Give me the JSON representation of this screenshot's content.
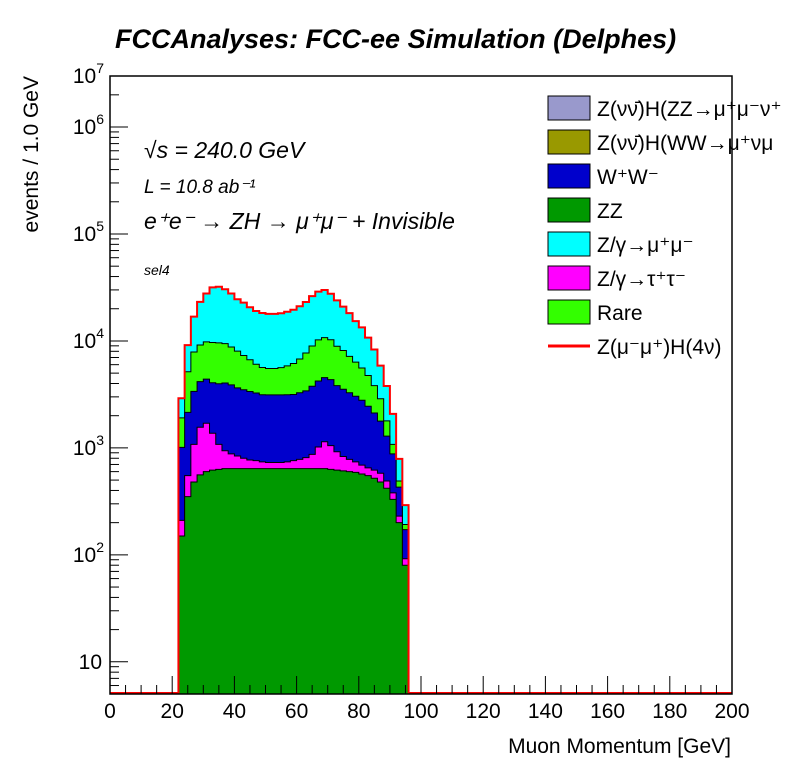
{
  "chart_data": {
    "type": "area",
    "title": "FCCAnalyses: FCC-ee Simulation (Delphes)",
    "xlabel": "Muon Momentum [GeV]",
    "ylabel": "events / 1.0 GeV",
    "xlim": [
      0,
      200
    ],
    "ylim": [
      5,
      3000000
    ],
    "log_y": true,
    "legend_position": "top-right",
    "x_ticks": [
      "0",
      "20",
      "40",
      "60",
      "80",
      "100",
      "120",
      "140",
      "160",
      "180",
      "200"
    ],
    "x_tick_values": [
      0,
      20,
      40,
      60,
      80,
      100,
      120,
      140,
      160,
      180,
      200
    ],
    "y_ticks": [
      {
        "value": 10,
        "base": "10",
        "exp": ""
      },
      {
        "value": 100,
        "base": "10",
        "exp": "2"
      },
      {
        "value": 1000,
        "base": "10",
        "exp": "3"
      },
      {
        "value": 10000,
        "base": "10",
        "exp": "4"
      },
      {
        "value": 100000,
        "base": "10",
        "exp": "5"
      },
      {
        "value": 1000000,
        "base": "10",
        "exp": "6"
      },
      {
        "value": 10000000,
        "base": "10",
        "exp": "7"
      }
    ],
    "annotations": {
      "sqrt_s": "√s = 240.0 GeV",
      "lumi": "L = 10.8 ab⁻¹",
      "process": "e⁺e⁻ → ZH → μ⁺μ⁻ + Invisible",
      "selection": "sel4"
    },
    "x": [
      18,
      20,
      22,
      24,
      26,
      28,
      30,
      32,
      34,
      36,
      38,
      40,
      42,
      44,
      46,
      48,
      50,
      52,
      54,
      56,
      58,
      60,
      62,
      64,
      66,
      68,
      70,
      72,
      74,
      76,
      78,
      80,
      82,
      84,
      86,
      88,
      90,
      92,
      94,
      96
    ],
    "stack_bottom_to_top": [
      {
        "name": "ZZ",
        "color": "#009900",
        "values": [
          0,
          0,
          150,
          350,
          480,
          560,
          600,
          620,
          630,
          640,
          640,
          640,
          640,
          640,
          640,
          640,
          640,
          640,
          640,
          640,
          640,
          640,
          640,
          640,
          640,
          640,
          630,
          620,
          610,
          600,
          590,
          570,
          550,
          520,
          480,
          420,
          330,
          200,
          80,
          0
        ]
      },
      {
        "name": "Z/γ→τ⁺τ⁻",
        "color": "#ff00ff",
        "values": [
          0,
          0,
          60,
          200,
          600,
          1000,
          1100,
          750,
          450,
          300,
          240,
          200,
          160,
          130,
          120,
          100,
          90,
          90,
          90,
          100,
          120,
          140,
          170,
          230,
          380,
          500,
          420,
          300,
          220,
          180,
          150,
          120,
          100,
          100,
          100,
          70,
          50,
          30,
          12,
          0
        ]
      },
      {
        "name": "W⁺W⁻",
        "color": "#0000cc",
        "values": [
          0,
          0,
          800,
          1600,
          2300,
          2600,
          2700,
          2700,
          2900,
          3100,
          3000,
          2800,
          2700,
          2600,
          2500,
          2400,
          2400,
          2400,
          2400,
          2400,
          2400,
          2500,
          2600,
          2900,
          3200,
          3400,
          3300,
          2900,
          2700,
          2500,
          2300,
          2100,
          1800,
          1500,
          1200,
          800,
          500,
          200,
          80,
          0
        ]
      },
      {
        "name": "Rare",
        "color": "#33ff00",
        "values": [
          0,
          0,
          900,
          3000,
          4500,
          5000,
          5400,
          5600,
          5600,
          5400,
          4900,
          4400,
          3800,
          3300,
          2800,
          2500,
          2400,
          2400,
          2500,
          2700,
          3000,
          3500,
          4300,
          5200,
          6000,
          6200,
          5900,
          5100,
          4600,
          3900,
          3300,
          2800,
          2300,
          1700,
          1100,
          500,
          200,
          60,
          20,
          0
        ]
      },
      {
        "name": "Z/γ→μ⁺μ⁻",
        "color": "#00ffff",
        "values": [
          0,
          0,
          1000,
          4000,
          9000,
          14000,
          18000,
          22000,
          22500,
          21000,
          19000,
          16500,
          15500,
          14000,
          13000,
          12600,
          12400,
          12400,
          12500,
          12900,
          13400,
          14300,
          15400,
          17300,
          18700,
          19200,
          17400,
          15000,
          12800,
          11000,
          9000,
          7800,
          6000,
          4500,
          3000,
          2000,
          1000,
          300,
          100,
          0
        ]
      }
    ],
    "signal": {
      "name": "Z(μ⁻μ⁺)H(4ν)",
      "color": "#ff0000"
    },
    "legend": [
      {
        "label": "Z(νν̄)H(ZZ→μ⁺μ⁻ν⁺",
        "color": "#9999cc",
        "type": "box"
      },
      {
        "label": "Z(νν̄)H(WW→μ⁺νμ",
        "color": "#999900",
        "type": "box"
      },
      {
        "label": "W⁺W⁻",
        "color": "#0000cc",
        "type": "box"
      },
      {
        "label": "ZZ",
        "color": "#009900",
        "type": "box"
      },
      {
        "label": "Z/γ→μ⁺μ⁻",
        "color": "#00ffff",
        "type": "box"
      },
      {
        "label": "Z/γ→τ⁺τ⁻",
        "color": "#ff00ff",
        "type": "box"
      },
      {
        "label": "Rare",
        "color": "#33ff00",
        "type": "box"
      },
      {
        "label": "Z(μ⁻μ⁺)H(4ν)",
        "color": "#ff0000",
        "type": "line"
      }
    ]
  }
}
